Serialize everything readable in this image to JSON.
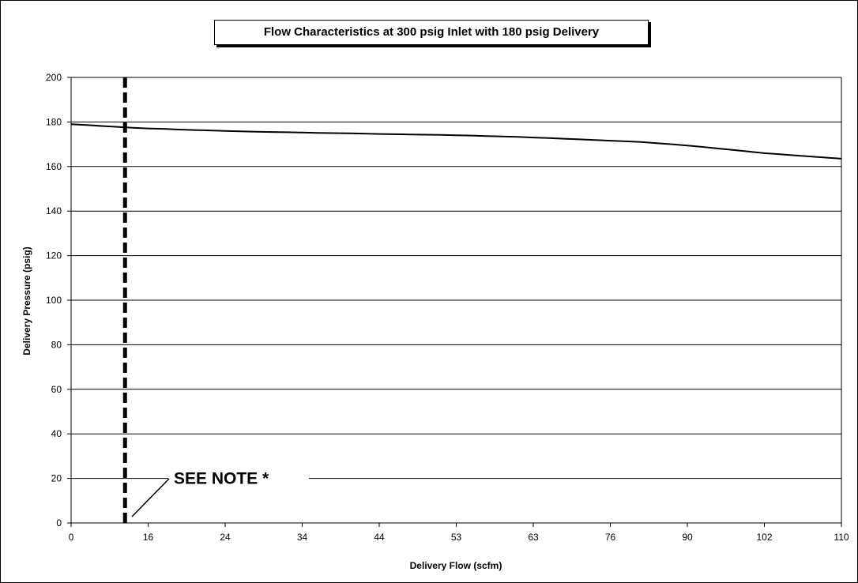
{
  "chart_data": {
    "type": "line",
    "title": "Flow Characteristics at 300 psig Inlet with 180 psig Delivery",
    "xlabel": "Delivery Flow (scfm)",
    "ylabel": "Delivery Pressure (psig)",
    "categories": [
      "0",
      "16",
      "24",
      "34",
      "44",
      "53",
      "63",
      "76",
      "90",
      "102",
      "110"
    ],
    "ylim": [
      0,
      200
    ],
    "yticks": [
      0,
      20,
      40,
      60,
      80,
      100,
      120,
      140,
      160,
      180,
      200
    ],
    "grid": "horizontal",
    "series": [
      {
        "color": "#000000",
        "x": [
          0,
          0.2,
          0.4,
          0.6,
          0.8,
          1.0,
          1.2,
          1.4,
          1.6,
          1.8,
          2.0,
          2.2,
          2.4,
          2.6,
          2.8,
          3.0,
          3.2,
          3.4,
          3.6,
          3.8,
          4.0,
          4.2,
          4.4,
          4.6,
          4.8,
          5.0,
          5.2,
          5.4,
          5.6,
          5.8,
          6.0,
          6.2,
          6.4,
          6.6,
          6.8,
          7.0,
          7.2,
          7.4,
          7.6,
          7.8,
          8.0,
          8.2,
          8.4,
          8.6,
          8.8,
          9.0,
          9.2,
          9.4,
          9.6,
          9.8,
          10.0
        ],
        "y": [
          179,
          178.6,
          178.2,
          177.8,
          177.4,
          177.1,
          176.9,
          176.6,
          176.4,
          176.2,
          176.0,
          175.8,
          175.6,
          175.5,
          175.4,
          175.3,
          175.1,
          175.0,
          174.9,
          174.8,
          174.6,
          174.5,
          174.4,
          174.3,
          174.2,
          174.0,
          173.9,
          173.7,
          173.5,
          173.3,
          173.0,
          172.8,
          172.5,
          172.2,
          171.9,
          171.6,
          171.3,
          171.0,
          170.5,
          170.0,
          169.4,
          168.8,
          168.1,
          167.4,
          166.7,
          166.0,
          165.5,
          165.0,
          164.5,
          164.0,
          163.5
        ]
      }
    ],
    "reference_line": {
      "x_category_position": 0.7,
      "style": "dashed"
    },
    "annotations": [
      {
        "text": "SEE NOTE *"
      }
    ]
  }
}
